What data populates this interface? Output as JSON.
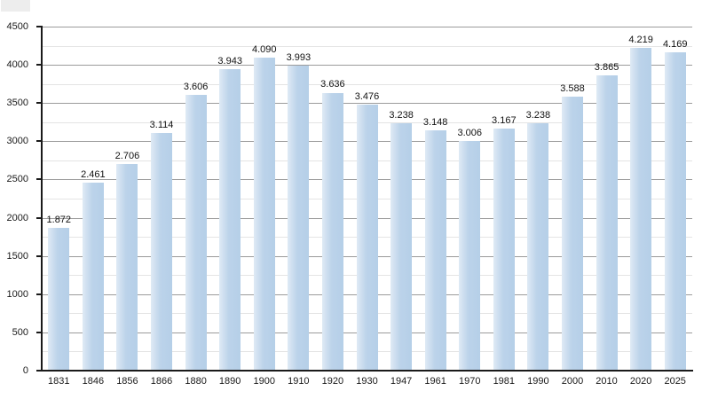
{
  "chart_data": {
    "type": "bar",
    "title": "",
    "xlabel": "",
    "ylabel": "",
    "categories": [
      "1831",
      "1846",
      "1856",
      "1866",
      "1880",
      "1890",
      "1900",
      "1910",
      "1920",
      "1930",
      "1947",
      "1961",
      "1970",
      "1981",
      "1990",
      "2000",
      "2010",
      "2020",
      "2025"
    ],
    "values": [
      1872,
      2461,
      2706,
      3114,
      3606,
      3943,
      4090,
      3993,
      3636,
      3476,
      3238,
      3148,
      3006,
      3167,
      3238,
      3588,
      3865,
      4219,
      4169
    ],
    "value_labels": [
      "1.872",
      "2.461",
      "2.706",
      "3.114",
      "3.606",
      "3.943",
      "4.090",
      "3.993",
      "3.636",
      "3.476",
      "3.238",
      "3.148",
      "3.006",
      "3.167",
      "3.238",
      "3.588",
      "3.865",
      "4.219",
      "4.169"
    ],
    "ylim": [
      0,
      4500
    ],
    "y_major_step": 500,
    "y_minor_step": 250,
    "y_tick_labels": [
      "0",
      "500",
      "1000",
      "1500",
      "2000",
      "2500",
      "3000",
      "3500",
      "4000",
      "4500"
    ],
    "grid": true,
    "legend": "none",
    "colors": {
      "bar_fill": "#b5cfe8",
      "bar_fill_light": "#dfeaf5",
      "major_grid": "#9b9b9b",
      "minor_grid": "#e4e4e4",
      "axis": "#1a1a1a",
      "text": "#111111"
    }
  }
}
